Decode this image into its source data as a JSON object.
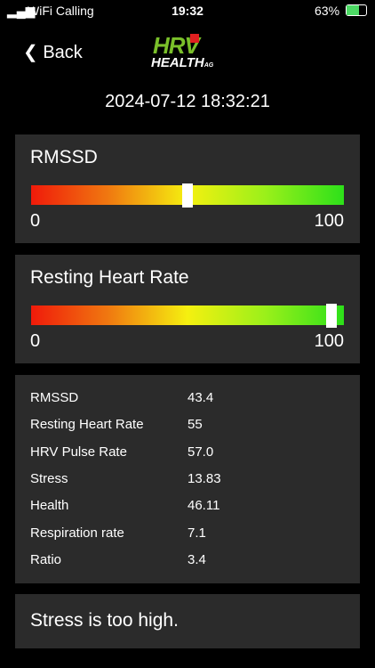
{
  "status_bar": {
    "carrier": "WiFi Calling",
    "time": "19:32",
    "battery": "63%"
  },
  "nav": {
    "back": "Back",
    "logo_main": "HRV",
    "logo_sub": "HEALTH",
    "logo_suffix": "AG"
  },
  "timestamp": "2024-07-12 18:32:21",
  "gauges": [
    {
      "title": "RMSSD",
      "min": 0,
      "max": 100,
      "value": 50
    },
    {
      "title": "Resting Heart Rate",
      "min": 0,
      "max": 100,
      "value": 96
    }
  ],
  "table": {
    "rows": [
      [
        "RMSSD",
        "43.4"
      ],
      [
        "Resting Heart Rate",
        "55"
      ],
      [
        "HRV Pulse Rate",
        "57.0"
      ],
      [
        "Stress",
        "13.83"
      ],
      [
        "Health",
        "46.11"
      ],
      [
        "Respiration rate",
        "7.1"
      ],
      [
        "Ratio",
        "3.4"
      ]
    ]
  },
  "message": "Stress is too high."
}
